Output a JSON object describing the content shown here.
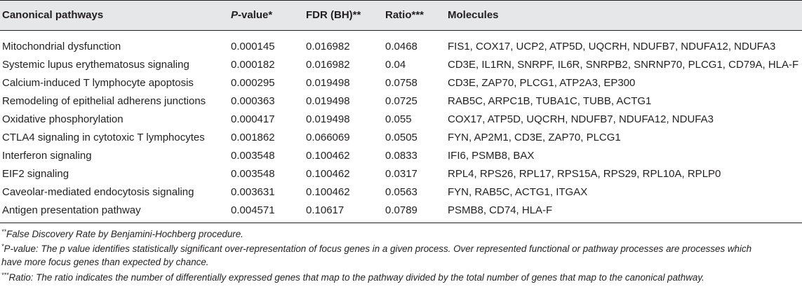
{
  "table": {
    "headers": {
      "pathway": "Canonical pathways",
      "pvalue_italic": "P",
      "pvalue_rest": "-value*",
      "fdr": "FDR (BH)**",
      "ratio": "Ratio***",
      "molecules": "Molecules"
    },
    "rows": [
      {
        "pathway": "Mitochondrial dysfunction",
        "pvalue": "0.000145",
        "fdr": "0.016982",
        "ratio": "0.0468",
        "molecules": "FIS1, COX17, UCP2, ATP5D, UQCRH, NDUFB7, NDUFA12, NDUFA3"
      },
      {
        "pathway": "Systemic lupus erythematosus signaling",
        "pvalue": "0.000182",
        "fdr": "0.016982",
        "ratio": "0.04",
        "molecules": "CD3E, IL1RN, SNRPF, IL6R, SNRPB2, SNRNP70, PLCG1, CD79A, HLA-F"
      },
      {
        "pathway": "Calcium-induced T lymphocyte apoptosis",
        "pvalue": "0.000295",
        "fdr": "0.019498",
        "ratio": "0.0758",
        "molecules": "CD3E, ZAP70, PLCG1, ATP2A3, EP300"
      },
      {
        "pathway": "Remodeling of epithelial adherens junctions",
        "pvalue": "0.000363",
        "fdr": "0.019498",
        "ratio": "0.0725",
        "molecules": "RAB5C, ARPC1B, TUBA1C, TUBB, ACTG1"
      },
      {
        "pathway": "Oxidative phosphorylation",
        "pvalue": "0.000417",
        "fdr": "0.019498",
        "ratio": "0.055",
        "molecules": "COX17, ATP5D, UQCRH, NDUFB7, NDUFA12, NDUFA3"
      },
      {
        "pathway": "CTLA4 signaling in cytotoxic T lymphocytes",
        "pvalue": "0.001862",
        "fdr": "0.066069",
        "ratio": "0.0505",
        "molecules": "FYN, AP2M1, CD3E, ZAP70, PLCG1"
      },
      {
        "pathway": "Interferon signaling",
        "pvalue": "0.003548",
        "fdr": "0.100462",
        "ratio": "0.0833",
        "molecules": "IFI6, PSMB8, BAX"
      },
      {
        "pathway": "EIF2 signaling",
        "pvalue": "0.003548",
        "fdr": "0.100462",
        "ratio": "0.0317",
        "molecules": "RPL4, RPS26, RPL17, RPS15A, RPS29, RPL10A, RPLP0"
      },
      {
        "pathway": "Caveolar-mediated endocytosis signaling",
        "pvalue": "0.003631",
        "fdr": "0.100462",
        "ratio": "0.0563",
        "molecules": "FYN, RAB5C, ACTG1, ITGAX"
      },
      {
        "pathway": "Antigen presentation pathway",
        "pvalue": "0.004571",
        "fdr": "0.10617",
        "ratio": "0.0789",
        "molecules": "PSMB8, CD74, HLA-F"
      }
    ]
  },
  "footnotes": {
    "fdr_mark": "**",
    "fdr_text": "False Discovery Rate by Benjamini-Hochberg procedure.",
    "pvalue_mark": "*",
    "pvalue_line1": "P-value: The p value identifies statistically significant over-representation of focus genes in a given process. Over represented functional or pathway processes are processes which",
    "pvalue_line2": "have more focus genes than expected by chance.",
    "ratio_mark": "***",
    "ratio_text": "Ratio: The ratio indicates the number of differentially expressed genes that map to the pathway divided by the total number of genes that map to the canonical pathway."
  }
}
